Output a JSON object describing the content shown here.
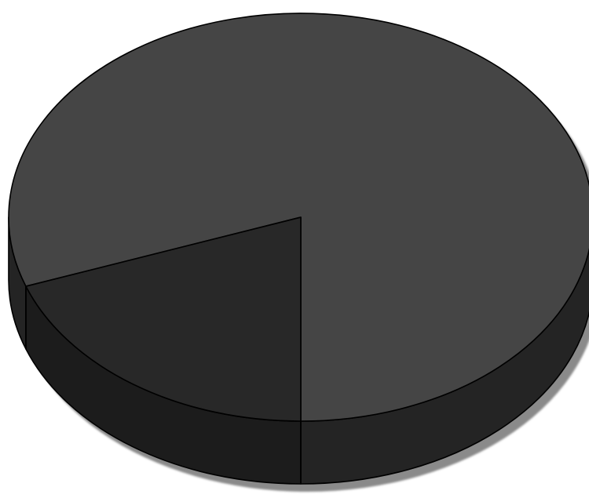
{
  "chart_data": {
    "type": "pie",
    "style": "3d",
    "title": "",
    "slices": [
      {
        "value": 80.5,
        "color": "#454545",
        "side_color": "#242424"
      },
      {
        "value": 19.5,
        "color": "#282828",
        "side_color": "#1c1c1c"
      }
    ],
    "legend": "none",
    "data_labels": "none",
    "shadow": true
  }
}
